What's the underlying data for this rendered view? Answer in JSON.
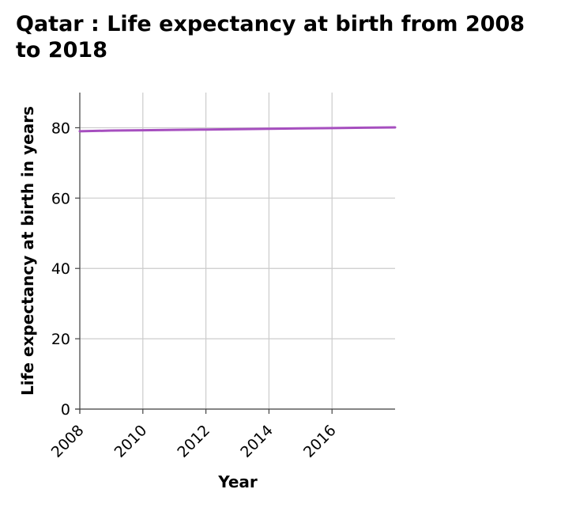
{
  "chart_data": {
    "type": "line",
    "title": "Qatar : Life expectancy at birth from 2008 to 2018",
    "xlabel": "Year",
    "ylabel": "Life expectancy at birth in years",
    "xlim": [
      2008,
      2018
    ],
    "ylim": [
      0,
      90
    ],
    "xticks": [
      2008,
      2010,
      2012,
      2014,
      2016
    ],
    "yticks": [
      0,
      20,
      40,
      60,
      80
    ],
    "grid": true,
    "line_color": "#a64fbf",
    "grid_color": "#cccccc",
    "series": [
      {
        "x": [
          2008,
          2009,
          2010,
          2011,
          2012,
          2013,
          2014,
          2015,
          2016,
          2017,
          2018
        ],
        "values": [
          79.0,
          79.2,
          79.3,
          79.4,
          79.5,
          79.6,
          79.7,
          79.8,
          79.9,
          80.0,
          80.1
        ]
      }
    ]
  }
}
